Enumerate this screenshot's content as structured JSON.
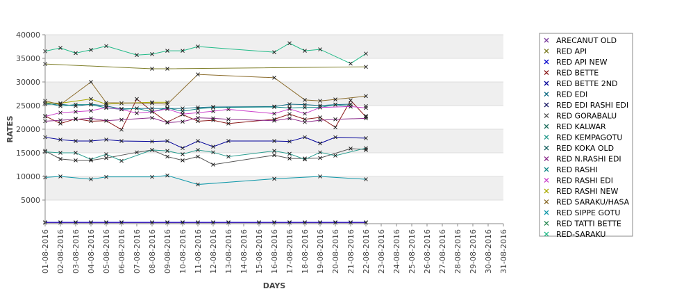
{
  "chart_data": {
    "type": "line",
    "title": "",
    "xlabel": "DAYS",
    "ylabel": "RATES",
    "ylim": [
      0,
      40000
    ],
    "yticks": [
      5000,
      10000,
      15000,
      20000,
      25000,
      30000,
      35000,
      40000
    ],
    "grid": true,
    "legend_position": "right",
    "categories": [
      "01-08-2016",
      "02-08-2016",
      "03-08-2016",
      "04-08-2016",
      "05-08-2016",
      "06-08-2016",
      "07-08-2016",
      "08-08-2016",
      "09-08-2016",
      "10-08-2016",
      "11-08-2016",
      "12-08-2016",
      "13-08-2016",
      "14-08-2016",
      "15-08-2016",
      "16-08-2016",
      "17-08-2016",
      "18-08-2016",
      "19-08-2016",
      "20-08-2016",
      "21-08-2016",
      "22-08-2016",
      "23-08-2016",
      "24-08-2016",
      "25-08-2016",
      "26-08-2016",
      "27-08-2016",
      "28-08-2016",
      "29-08-2016",
      "30-08-2016",
      "31-08-2016"
    ],
    "series": [
      {
        "name": "ARECANUT OLD",
        "color": "#7b3f9e",
        "values": [
          200,
          200,
          200,
          200,
          200,
          200,
          null,
          200,
          200,
          200,
          200,
          200,
          200,
          null,
          200,
          200,
          200,
          200,
          200,
          200,
          200,
          200,
          null,
          null,
          null,
          null,
          null,
          null,
          null,
          null,
          null
        ]
      },
      {
        "name": "RED API",
        "color": "#7f7f2a",
        "values": [
          33800,
          null,
          null,
          null,
          null,
          null,
          null,
          32800,
          32800,
          null,
          null,
          null,
          null,
          null,
          null,
          null,
          null,
          null,
          null,
          null,
          null,
          33200,
          null,
          null,
          null,
          null,
          null,
          null,
          null,
          null,
          null
        ]
      },
      {
        "name": "RED API NEW",
        "color": "#0000cc",
        "values": [
          300,
          300,
          300,
          300,
          300,
          300,
          null,
          300,
          300,
          300,
          300,
          300,
          300,
          null,
          300,
          300,
          300,
          300,
          300,
          300,
          300,
          300,
          null,
          null,
          null,
          null,
          null,
          null,
          null,
          null,
          null
        ]
      },
      {
        "name": "RED BETTE",
        "color": "#8b1a1a",
        "values": [
          22800,
          21200,
          22200,
          21700,
          21800,
          19900,
          26400,
          23800,
          21500,
          23100,
          21700,
          21900,
          21200,
          null,
          null,
          22100,
          23200,
          22100,
          22500,
          20400,
          26100,
          22600,
          null,
          null,
          null,
          null,
          null,
          null,
          null,
          null,
          null
        ]
      },
      {
        "name": "RED BETTE 2ND",
        "color": "#000099",
        "values": [
          18300,
          17800,
          17500,
          17500,
          17800,
          17500,
          null,
          17400,
          17500,
          16000,
          17500,
          16300,
          17500,
          null,
          null,
          17500,
          17400,
          18300,
          17000,
          18300,
          null,
          18100,
          null,
          null,
          null,
          null,
          null,
          null,
          null,
          null,
          null
        ]
      },
      {
        "name": "RED EDI",
        "color": "#0f6b84",
        "values": [
          25300,
          25300,
          24900,
          25300,
          24900,
          24300,
          24400,
          24400,
          24400,
          24400,
          24600,
          24700,
          null,
          null,
          null,
          24800,
          25300,
          25200,
          25000,
          25200,
          25300,
          null,
          null,
          null,
          null,
          null,
          null,
          null,
          null,
          null,
          null
        ]
      },
      {
        "name": "RED EDI RASHI EDI",
        "color": "#1a1a66",
        "values": [
          null,
          null,
          null,
          null,
          null,
          null,
          null,
          null,
          null,
          null,
          null,
          null,
          null,
          null,
          null,
          null,
          null,
          null,
          null,
          null,
          null,
          22800,
          null,
          null,
          null,
          null,
          null,
          null,
          null,
          null,
          null
        ]
      },
      {
        "name": "RED GORABALU",
        "color": "#555555",
        "values": [
          15400,
          13700,
          13400,
          13400,
          13900,
          null,
          15100,
          15600,
          14200,
          13400,
          14200,
          12500,
          null,
          null,
          null,
          14500,
          13800,
          13800,
          13900,
          null,
          15900,
          15700,
          null,
          null,
          null,
          null,
          null,
          null,
          null,
          null,
          null
        ]
      },
      {
        "name": "RED KALWAR",
        "color": "#1f6f5f",
        "values": [
          null,
          null,
          null,
          null,
          null,
          null,
          null,
          null,
          null,
          null,
          null,
          null,
          null,
          null,
          null,
          null,
          null,
          null,
          null,
          null,
          null,
          15600,
          null,
          null,
          null,
          null,
          null,
          null,
          null,
          null,
          null
        ]
      },
      {
        "name": "RED KEMPAGOTU",
        "color": "#2a9d8f",
        "values": [
          15200,
          15000,
          15000,
          13600,
          14700,
          13300,
          null,
          15600,
          15400,
          14700,
          15600,
          15100,
          14200,
          null,
          null,
          15400,
          14800,
          13600,
          15100,
          14400,
          null,
          16000,
          null,
          null,
          null,
          null,
          null,
          null,
          null,
          null,
          null
        ]
      },
      {
        "name": "RED KOKA OLD",
        "color": "#135e5e",
        "values": [
          null,
          null,
          null,
          null,
          null,
          null,
          null,
          null,
          null,
          null,
          null,
          null,
          null,
          null,
          null,
          null,
          null,
          null,
          null,
          null,
          null,
          22700,
          null,
          null,
          null,
          null,
          null,
          null,
          null,
          null,
          null
        ]
      },
      {
        "name": "RED N.RASHI EDI",
        "color": "#8b2c8b",
        "values": [
          21700,
          21900,
          22100,
          22300,
          21800,
          22000,
          null,
          22400,
          21400,
          21600,
          22400,
          22300,
          22100,
          null,
          null,
          21800,
          22300,
          21500,
          21900,
          22100,
          null,
          22300,
          null,
          null,
          null,
          null,
          null,
          null,
          null,
          null,
          null
        ]
      },
      {
        "name": "RED RASHI",
        "color": "#138a8a",
        "values": [
          25600,
          24900,
          25200,
          25200,
          24500,
          24200,
          24400,
          23700,
          24500,
          23800,
          24300,
          24600,
          null,
          null,
          null,
          24700,
          24500,
          24600,
          24600,
          25200,
          24800,
          null,
          null,
          null,
          null,
          null,
          null,
          null,
          null,
          null,
          null
        ]
      },
      {
        "name": "RED RASHI EDI",
        "color": "#cc44cc",
        "values": [
          22700,
          23500,
          23700,
          23900,
          24600,
          24200,
          23400,
          23700,
          24300,
          23200,
          23500,
          23800,
          24200,
          null,
          null,
          23300,
          24300,
          23300,
          24600,
          null,
          24800,
          24500,
          null,
          null,
          null,
          null,
          null,
          null,
          null,
          null,
          null
        ]
      },
      {
        "name": "RED RASHI NEW",
        "color": "#aaaa00",
        "values": [
          25600,
          25500,
          null,
          26400,
          25300,
          25500,
          null,
          25700,
          25700,
          null,
          null,
          null,
          null,
          null,
          null,
          null,
          null,
          null,
          null,
          null,
          null,
          null,
          null,
          null,
          null,
          null,
          null,
          null,
          null,
          null,
          null
        ]
      },
      {
        "name": "RED SARAKU/HASA",
        "color": "#8b6c2c",
        "values": [
          26000,
          25200,
          null,
          30000,
          25600,
          null,
          null,
          25500,
          25300,
          null,
          31600,
          null,
          null,
          null,
          null,
          30900,
          null,
          26200,
          26000,
          26300,
          null,
          27000,
          null,
          null,
          null,
          null,
          null,
          null,
          null,
          null,
          null
        ]
      },
      {
        "name": "RED SIPPE GOTU",
        "color": "#1199aa",
        "values": [
          9800,
          10000,
          null,
          9400,
          9900,
          null,
          null,
          9900,
          10200,
          null,
          8300,
          null,
          null,
          null,
          null,
          9500,
          null,
          null,
          10000,
          null,
          null,
          9400,
          null,
          null,
          null,
          null,
          null,
          null,
          null,
          null,
          null
        ]
      },
      {
        "name": "RED TATTI BETTE",
        "color": "#2e8b57",
        "values": [
          null,
          null,
          null,
          null,
          null,
          null,
          null,
          null,
          null,
          null,
          null,
          null,
          null,
          null,
          null,
          null,
          null,
          null,
          null,
          null,
          null,
          24900,
          null,
          null,
          null,
          null,
          null,
          null,
          null,
          null,
          null
        ]
      },
      {
        "name": "RED-SARAKU",
        "color": "#22bb88",
        "values": [
          36500,
          37200,
          36100,
          36800,
          37600,
          null,
          35700,
          35900,
          36600,
          36600,
          37500,
          null,
          null,
          null,
          null,
          36300,
          38200,
          36600,
          36900,
          null,
          33900,
          36000,
          null,
          null,
          null,
          null,
          null,
          null,
          null,
          null,
          null
        ]
      }
    ]
  }
}
